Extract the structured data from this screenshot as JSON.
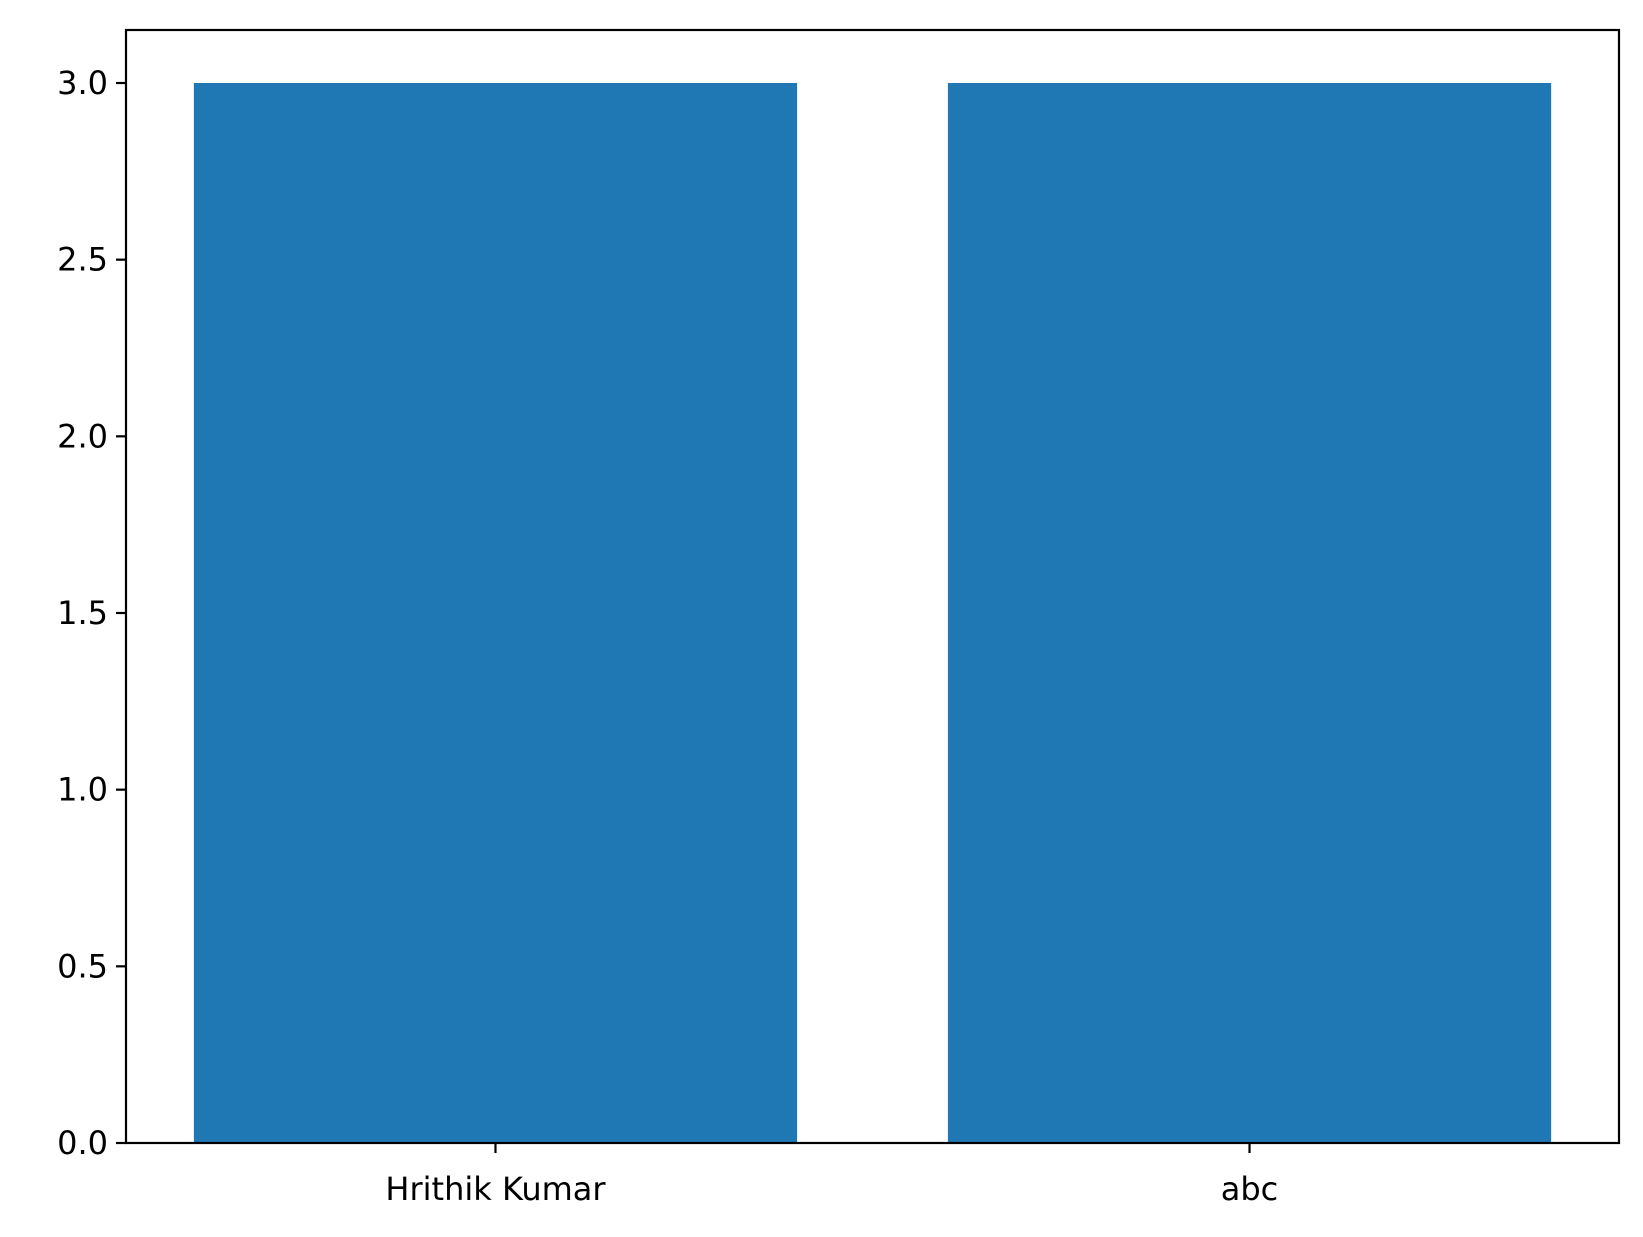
{
  "chart_data": {
    "type": "bar",
    "categories": [
      "Hrithik Kumar",
      "abc"
    ],
    "values": [
      3,
      3
    ],
    "title": "",
    "xlabel": "",
    "ylabel": "",
    "ylim": [
      0,
      3.15
    ],
    "yticks": [
      "0.0",
      "0.5",
      "1.0",
      "1.5",
      "2.0",
      "2.5",
      "3.0"
    ],
    "grid": false,
    "bar_color": "#1f77b4",
    "axis_color": "#000000"
  }
}
